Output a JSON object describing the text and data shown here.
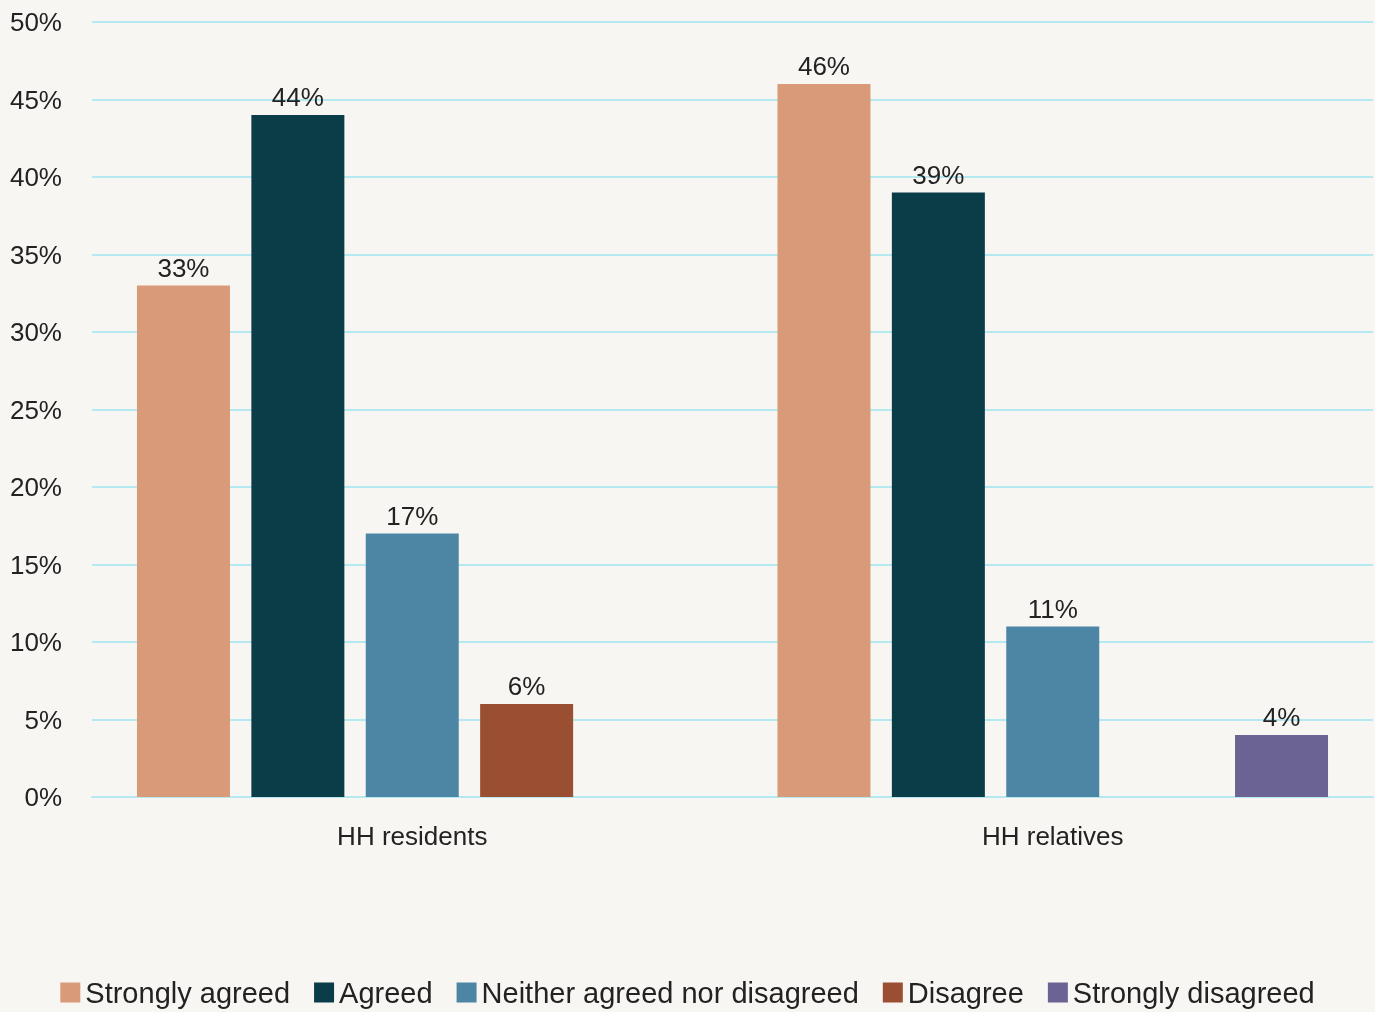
{
  "chart_data": {
    "type": "bar",
    "categories": [
      "HH residents",
      "HH relatives"
    ],
    "series": [
      {
        "name": "Strongly agreed",
        "color": "#d89a78",
        "values": [
          33,
          46
        ],
        "value_labels": [
          "33%",
          "46%"
        ]
      },
      {
        "name": "Agreed",
        "color": "#0b3d48",
        "values": [
          44,
          39
        ],
        "value_labels": [
          "44%",
          "39%"
        ]
      },
      {
        "name": "Neither agreed nor disagreed",
        "color": "#4d86a5",
        "values": [
          17,
          11
        ],
        "value_labels": [
          "17%",
          "11%"
        ]
      },
      {
        "name": "Disagree",
        "color": "#9a4f33",
        "values": [
          6,
          null
        ],
        "value_labels": [
          "6%",
          null
        ]
      },
      {
        "name": "Strongly disagreed",
        "color": "#6a6394",
        "values": [
          null,
          4
        ],
        "value_labels": [
          null,
          "4%"
        ]
      }
    ],
    "ylim": [
      0,
      50
    ],
    "yticks": [
      {
        "value": 0,
        "label": "0%"
      },
      {
        "value": 5,
        "label": "5%"
      },
      {
        "value": 10,
        "label": "10%"
      },
      {
        "value": 15,
        "label": "15%"
      },
      {
        "value": 20,
        "label": "20%"
      },
      {
        "value": 25,
        "label": "25%"
      },
      {
        "value": 30,
        "label": "30%"
      },
      {
        "value": 35,
        "label": "35%"
      },
      {
        "value": 40,
        "label": "40%"
      },
      {
        "value": 45,
        "label": "45%"
      },
      {
        "value": 50,
        "label": "50%"
      }
    ],
    "grid": "y",
    "legend": "bottom"
  }
}
